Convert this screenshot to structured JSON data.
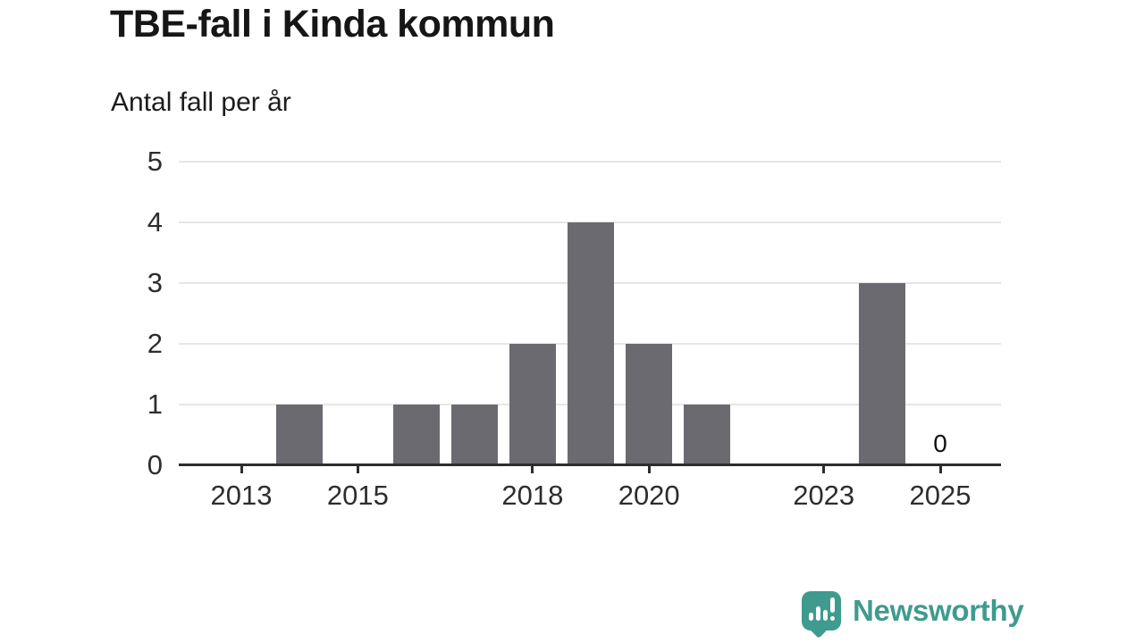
{
  "header": {
    "title": "TBE-fall i Kinda kommun",
    "subtitle": "Antal fall per år"
  },
  "chart_data": {
    "type": "bar",
    "title": "TBE-fall i Kinda kommun",
    "ylabel": "Antal fall per år",
    "xlabel": "",
    "categories": [
      2013,
      2014,
      2015,
      2016,
      2017,
      2018,
      2019,
      2020,
      2021,
      2022,
      2023,
      2024,
      2025
    ],
    "values": [
      0,
      1,
      0,
      1,
      1,
      2,
      4,
      2,
      1,
      0,
      0,
      3,
      0
    ],
    "ylim": [
      0,
      5
    ],
    "yticks": [
      0,
      1,
      2,
      3,
      4,
      5
    ],
    "xticks": [
      2013,
      2015,
      2018,
      2020,
      2023,
      2025
    ],
    "grid": true,
    "legend_position": "none",
    "annotations": [
      {
        "year": 2025,
        "value": 0,
        "label": "0"
      }
    ]
  },
  "colors": {
    "bar": "#6b6a70",
    "axis": "#2d2d2d",
    "grid": "#e6e6e6",
    "brand_teal": "#3f9b8e"
  },
  "footer": {
    "brand": "Newsworthy",
    "logo_icon": "newsworthy-speech-bubble-bar-chart-icon"
  }
}
